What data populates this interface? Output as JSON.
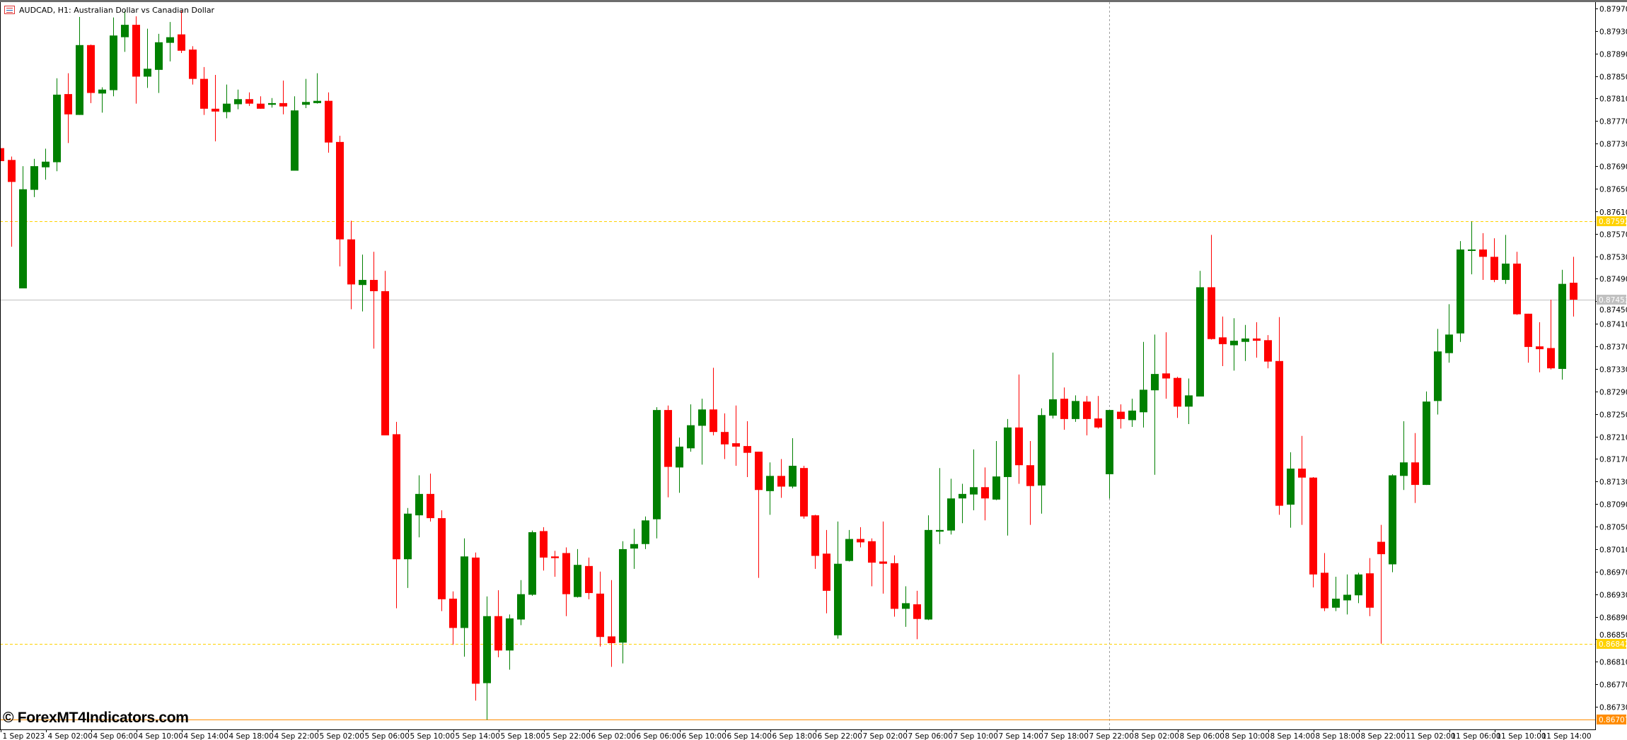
{
  "window": {
    "title": "AUDCAD, H1:  Australian Dollar vs Canadian Dollar",
    "icon": "chart-window-icon",
    "watermark": "© ForexMT4Indicators.com"
  },
  "colors": {
    "bull": "#008000",
    "bear": "#ff0000",
    "level_dashed": "#ffd200",
    "bid_line": "#c0c0c0",
    "orange_line": "#ff8c00",
    "period_separator": "#a0a0a0"
  },
  "chart_data": {
    "type": "candlestick",
    "symbol": "AUDCAD",
    "timeframe": "H1",
    "ohlc_order": [
      "open",
      "high",
      "low",
      "close"
    ],
    "ylim": [
      0.8671,
      0.8798
    ],
    "grid": false,
    "y_ticks": [
      "0.87970",
      "0.87930",
      "0.87890",
      "0.87850",
      "0.87810",
      "0.87770",
      "0.87730",
      "0.87690",
      "0.87650",
      "0.87610",
      "0.87570",
      "0.87530",
      "0.87490",
      "0.87450",
      "0.87410",
      "0.87370",
      "0.87330",
      "0.87290",
      "0.87250",
      "0.87210",
      "0.87170",
      "0.87130",
      "0.87090",
      "0.87050",
      "0.87010",
      "0.86970",
      "0.86930",
      "0.86890",
      "0.86850",
      "0.86810",
      "0.86770",
      "0.86730"
    ],
    "x_ticks": [
      {
        "bar": 0,
        "label": "1 Sep 2023"
      },
      {
        "bar": 4,
        "label": "4 Sep 02:00"
      },
      {
        "bar": 8,
        "label": "4 Sep 06:00"
      },
      {
        "bar": 12,
        "label": "4 Sep 10:00"
      },
      {
        "bar": 16,
        "label": "4 Sep 14:00"
      },
      {
        "bar": 20,
        "label": "4 Sep 18:00"
      },
      {
        "bar": 24,
        "label": "4 Sep 22:00"
      },
      {
        "bar": 28,
        "label": "5 Sep 02:00"
      },
      {
        "bar": 32,
        "label": "5 Sep 06:00"
      },
      {
        "bar": 36,
        "label": "5 Sep 10:00"
      },
      {
        "bar": 40,
        "label": "5 Sep 14:00"
      },
      {
        "bar": 44,
        "label": "5 Sep 18:00"
      },
      {
        "bar": 48,
        "label": "5 Sep 22:00"
      },
      {
        "bar": 52,
        "label": "6 Sep 02:00"
      },
      {
        "bar": 56,
        "label": "6 Sep 06:00"
      },
      {
        "bar": 60,
        "label": "6 Sep 10:00"
      },
      {
        "bar": 64,
        "label": "6 Sep 14:00"
      },
      {
        "bar": 68,
        "label": "6 Sep 18:00"
      },
      {
        "bar": 72,
        "label": "6 Sep 22:00"
      },
      {
        "bar": 76,
        "label": "7 Sep 02:00"
      },
      {
        "bar": 80,
        "label": "7 Sep 06:00"
      },
      {
        "bar": 84,
        "label": "7 Sep 10:00"
      },
      {
        "bar": 88,
        "label": "7 Sep 14:00"
      },
      {
        "bar": 92,
        "label": "7 Sep 18:00"
      },
      {
        "bar": 96,
        "label": "7 Sep 22:00"
      },
      {
        "bar": 100,
        "label": "8 Sep 02:00"
      },
      {
        "bar": 104,
        "label": "8 Sep 06:00"
      },
      {
        "bar": 108,
        "label": "8 Sep 10:00"
      },
      {
        "bar": 112,
        "label": "8 Sep 14:00"
      },
      {
        "bar": 116,
        "label": "8 Sep 18:00"
      },
      {
        "bar": 120,
        "label": "8 Sep 22:00"
      },
      {
        "bar": 124,
        "label": "11 Sep 02:00"
      },
      {
        "bar": 128,
        "label": "11 Sep 06:00"
      },
      {
        "bar": 132,
        "label": "11 Sep 10:00"
      },
      {
        "bar": 136,
        "label": "11 Sep 14:00"
      }
    ],
    "levels": [
      {
        "price": 0.87592,
        "label": "0.87592",
        "style": "dashed",
        "color": "#ffd200"
      },
      {
        "price": 0.87453,
        "label": "0.87453",
        "style": "solid",
        "color": "#c0c0c0"
      },
      {
        "price": 0.86842,
        "label": "0.86842",
        "style": "dashed",
        "color": "#ffd200"
      },
      {
        "price": 0.86707,
        "label": "0.86707",
        "style": "solid",
        "color": "#ff8c00"
      }
    ],
    "vertical_separator_bar": 98,
    "candles": [
      [
        0.87722,
        0.87725,
        0.87695,
        0.87699
      ],
      [
        0.87701,
        0.87707,
        0.87547,
        0.87662
      ],
      [
        0.87473,
        0.8769,
        0.87473,
        0.87649
      ],
      [
        0.87648,
        0.87703,
        0.87635,
        0.8769
      ],
      [
        0.87688,
        0.87721,
        0.87666,
        0.87698
      ],
      [
        0.87697,
        0.87846,
        0.87681,
        0.87817
      ],
      [
        0.87818,
        0.87855,
        0.87731,
        0.87782
      ],
      [
        0.87781,
        0.87955,
        0.87781,
        0.87905
      ],
      [
        0.87905,
        0.87906,
        0.87802,
        0.8782
      ],
      [
        0.87819,
        0.8783,
        0.87785,
        0.87826
      ],
      [
        0.87825,
        0.87954,
        0.87814,
        0.87922
      ],
      [
        0.87919,
        0.87966,
        0.87893,
        0.87941
      ],
      [
        0.87941,
        0.87956,
        0.87801,
        0.87849
      ],
      [
        0.87849,
        0.87934,
        0.87829,
        0.87863
      ],
      [
        0.87861,
        0.87925,
        0.8782,
        0.8791
      ],
      [
        0.87909,
        0.87946,
        0.87876,
        0.87919
      ],
      [
        0.87924,
        0.87966,
        0.87891,
        0.87895
      ],
      [
        0.87897,
        0.87903,
        0.87835,
        0.87845
      ],
      [
        0.87845,
        0.87866,
        0.87781,
        0.87792
      ],
      [
        0.87792,
        0.87852,
        0.87734,
        0.87787
      ],
      [
        0.87786,
        0.87835,
        0.87775,
        0.87801
      ],
      [
        0.878,
        0.87826,
        0.87791,
        0.87809
      ],
      [
        0.87809,
        0.87821,
        0.87797,
        0.87801
      ],
      [
        0.87801,
        0.87814,
        0.87792,
        0.87792
      ],
      [
        0.87799,
        0.87811,
        0.87794,
        0.87802
      ],
      [
        0.87802,
        0.87842,
        0.87782,
        0.87796
      ],
      [
        0.87682,
        0.87814,
        0.87682,
        0.87789
      ],
      [
        0.87799,
        0.87845,
        0.87793,
        0.87804
      ],
      [
        0.87802,
        0.87855,
        0.87801,
        0.87806
      ],
      [
        0.87806,
        0.87821,
        0.87714,
        0.87732
      ],
      [
        0.87733,
        0.87744,
        0.87512,
        0.8756
      ],
      [
        0.8756,
        0.87593,
        0.87436,
        0.8748
      ],
      [
        0.87479,
        0.87533,
        0.87432,
        0.87488
      ],
      [
        0.87488,
        0.87538,
        0.87366,
        0.87468
      ],
      [
        0.87468,
        0.87504,
        0.87212,
        0.87212
      ],
      [
        0.87214,
        0.87236,
        0.86905,
        0.86992
      ],
      [
        0.86992,
        0.87083,
        0.86941,
        0.87073
      ],
      [
        0.8707,
        0.87141,
        0.87031,
        0.87108
      ],
      [
        0.87108,
        0.87144,
        0.87059,
        0.87065
      ],
      [
        0.87065,
        0.87079,
        0.869,
        0.86921
      ],
      [
        0.86922,
        0.86935,
        0.8684,
        0.8687
      ],
      [
        0.8687,
        0.87029,
        0.86819,
        0.86997
      ],
      [
        0.86995,
        0.87004,
        0.86741,
        0.86771
      ],
      [
        0.86772,
        0.86926,
        0.86707,
        0.86891
      ],
      [
        0.86891,
        0.86937,
        0.86818,
        0.8683
      ],
      [
        0.8683,
        0.86894,
        0.86796,
        0.86887
      ],
      [
        0.86885,
        0.86955,
        0.86875,
        0.8693
      ],
      [
        0.86929,
        0.87043,
        0.86927,
        0.8704
      ],
      [
        0.87042,
        0.87049,
        0.86972,
        0.86995
      ],
      [
        0.86997,
        0.87007,
        0.86961,
        0.86994
      ],
      [
        0.87003,
        0.87013,
        0.86891,
        0.8693
      ],
      [
        0.86925,
        0.8701,
        0.86924,
        0.86982
      ],
      [
        0.8698,
        0.86995,
        0.86921,
        0.86932
      ],
      [
        0.86931,
        0.8697,
        0.86837,
        0.86854
      ],
      [
        0.86855,
        0.86955,
        0.86801,
        0.86843
      ],
      [
        0.86844,
        0.87024,
        0.86807,
        0.8701
      ],
      [
        0.87011,
        0.87046,
        0.86975,
        0.87019
      ],
      [
        0.87019,
        0.87068,
        0.8701,
        0.87061
      ],
      [
        0.87063,
        0.87262,
        0.87029,
        0.87257
      ],
      [
        0.87257,
        0.87265,
        0.87102,
        0.87156
      ],
      [
        0.87155,
        0.87208,
        0.8711,
        0.87192
      ],
      [
        0.87189,
        0.87267,
        0.87183,
        0.8723
      ],
      [
        0.87229,
        0.87277,
        0.8716,
        0.87258
      ],
      [
        0.87258,
        0.87332,
        0.87212,
        0.87218
      ],
      [
        0.87218,
        0.87251,
        0.8717,
        0.87196
      ],
      [
        0.87198,
        0.87265,
        0.87158,
        0.87192
      ],
      [
        0.87193,
        0.87237,
        0.87138,
        0.87181
      ],
      [
        0.87183,
        0.87183,
        0.86959,
        0.87115
      ],
      [
        0.87113,
        0.87164,
        0.87071,
        0.8714
      ],
      [
        0.8714,
        0.8717,
        0.87101,
        0.87121
      ],
      [
        0.87121,
        0.87207,
        0.87118,
        0.87158
      ],
      [
        0.87154,
        0.87158,
        0.87064,
        0.87068
      ],
      [
        0.8707,
        0.87071,
        0.86975,
        0.86998
      ],
      [
        0.87002,
        0.87044,
        0.86896,
        0.86936
      ],
      [
        0.86857,
        0.87059,
        0.86851,
        0.86984
      ],
      [
        0.86989,
        0.87044,
        0.86988,
        0.87028
      ],
      [
        0.87028,
        0.87049,
        0.87013,
        0.87022
      ],
      [
        0.87024,
        0.87029,
        0.86944,
        0.86986
      ],
      [
        0.86988,
        0.87059,
        0.86931,
        0.86984
      ],
      [
        0.86985,
        0.86999,
        0.8689,
        0.86904
      ],
      [
        0.86904,
        0.86944,
        0.86872,
        0.86914
      ],
      [
        0.86912,
        0.86936,
        0.8685,
        0.86886
      ],
      [
        0.86885,
        0.8707,
        0.86884,
        0.87044
      ],
      [
        0.87041,
        0.87154,
        0.87019,
        0.87044
      ],
      [
        0.87043,
        0.87135,
        0.87036,
        0.871
      ],
      [
        0.871,
        0.87126,
        0.87056,
        0.87108
      ],
      [
        0.87107,
        0.87187,
        0.87079,
        0.8712
      ],
      [
        0.8712,
        0.87155,
        0.87061,
        0.871
      ],
      [
        0.87098,
        0.87202,
        0.87097,
        0.87139
      ],
      [
        0.87138,
        0.87241,
        0.87034,
        0.87226
      ],
      [
        0.87226,
        0.8732,
        0.87126,
        0.87159
      ],
      [
        0.87159,
        0.87202,
        0.87053,
        0.87122
      ],
      [
        0.87123,
        0.8726,
        0.87073,
        0.87248
      ],
      [
        0.87247,
        0.87359,
        0.87242,
        0.87276
      ],
      [
        0.87277,
        0.87297,
        0.87222,
        0.87241
      ],
      [
        0.87241,
        0.87283,
        0.87236,
        0.87273
      ],
      [
        0.87272,
        0.87282,
        0.87212,
        0.87241
      ],
      [
        0.87242,
        0.87282,
        0.87224,
        0.87226
      ],
      [
        0.87143,
        0.87257,
        0.871,
        0.87257
      ],
      [
        0.87254,
        0.87267,
        0.87224,
        0.87241
      ],
      [
        0.87239,
        0.87277,
        0.87227,
        0.87256
      ],
      [
        0.87253,
        0.87378,
        0.87226,
        0.87293
      ],
      [
        0.87292,
        0.87391,
        0.87142,
        0.87321
      ],
      [
        0.87322,
        0.87395,
        0.87277,
        0.87313
      ],
      [
        0.87314,
        0.87316,
        0.87243,
        0.87263
      ],
      [
        0.87263,
        0.87313,
        0.87232,
        0.87283
      ],
      [
        0.87281,
        0.87504,
        0.87281,
        0.87475
      ],
      [
        0.87475,
        0.87568,
        0.87382,
        0.87383
      ],
      [
        0.87386,
        0.87423,
        0.87335,
        0.87374
      ],
      [
        0.87372,
        0.8742,
        0.87327,
        0.8738
      ],
      [
        0.87378,
        0.87408,
        0.87344,
        0.87384
      ],
      [
        0.87384,
        0.87413,
        0.8735,
        0.8738
      ],
      [
        0.87381,
        0.8739,
        0.87331,
        0.87343
      ],
      [
        0.87344,
        0.87422,
        0.87071,
        0.87087
      ],
      [
        0.87089,
        0.87182,
        0.87048,
        0.87153
      ],
      [
        0.87153,
        0.87211,
        0.87053,
        0.87137
      ],
      [
        0.87137,
        0.87138,
        0.86942,
        0.86965
      ],
      [
        0.86968,
        0.87003,
        0.869,
        0.86905
      ],
      [
        0.86906,
        0.86961,
        0.869,
        0.86922
      ],
      [
        0.86919,
        0.86965,
        0.86894,
        0.86929
      ],
      [
        0.86928,
        0.86968,
        0.86914,
        0.86965
      ],
      [
        0.86967,
        0.86994,
        0.86891,
        0.86906
      ],
      [
        0.87023,
        0.87053,
        0.86842,
        0.87001
      ],
      [
        0.86983,
        0.87143,
        0.86969,
        0.87141
      ],
      [
        0.8714,
        0.87237,
        0.87115,
        0.87164
      ],
      [
        0.87164,
        0.87216,
        0.87092,
        0.87124
      ],
      [
        0.87124,
        0.8729,
        0.87124,
        0.87272
      ],
      [
        0.87273,
        0.87401,
        0.87249,
        0.87361
      ],
      [
        0.87358,
        0.87445,
        0.87341,
        0.87391
      ],
      [
        0.87393,
        0.87557,
        0.87378,
        0.87542
      ],
      [
        0.87541,
        0.87592,
        0.87498,
        0.87542
      ],
      [
        0.87542,
        0.87571,
        0.87488,
        0.87529
      ],
      [
        0.87529,
        0.87562,
        0.87484,
        0.87488
      ],
      [
        0.87488,
        0.87568,
        0.87481,
        0.87517
      ],
      [
        0.87517,
        0.87538,
        0.87426,
        0.87427
      ],
      [
        0.87428,
        0.87428,
        0.87341,
        0.87369
      ],
      [
        0.8737,
        0.87413,
        0.87324,
        0.87365
      ],
      [
        0.87367,
        0.87453,
        0.87329,
        0.87331
      ],
      [
        0.8733,
        0.87506,
        0.87311,
        0.87481
      ],
      [
        0.87483,
        0.87529,
        0.87423,
        0.87453
      ]
    ]
  }
}
